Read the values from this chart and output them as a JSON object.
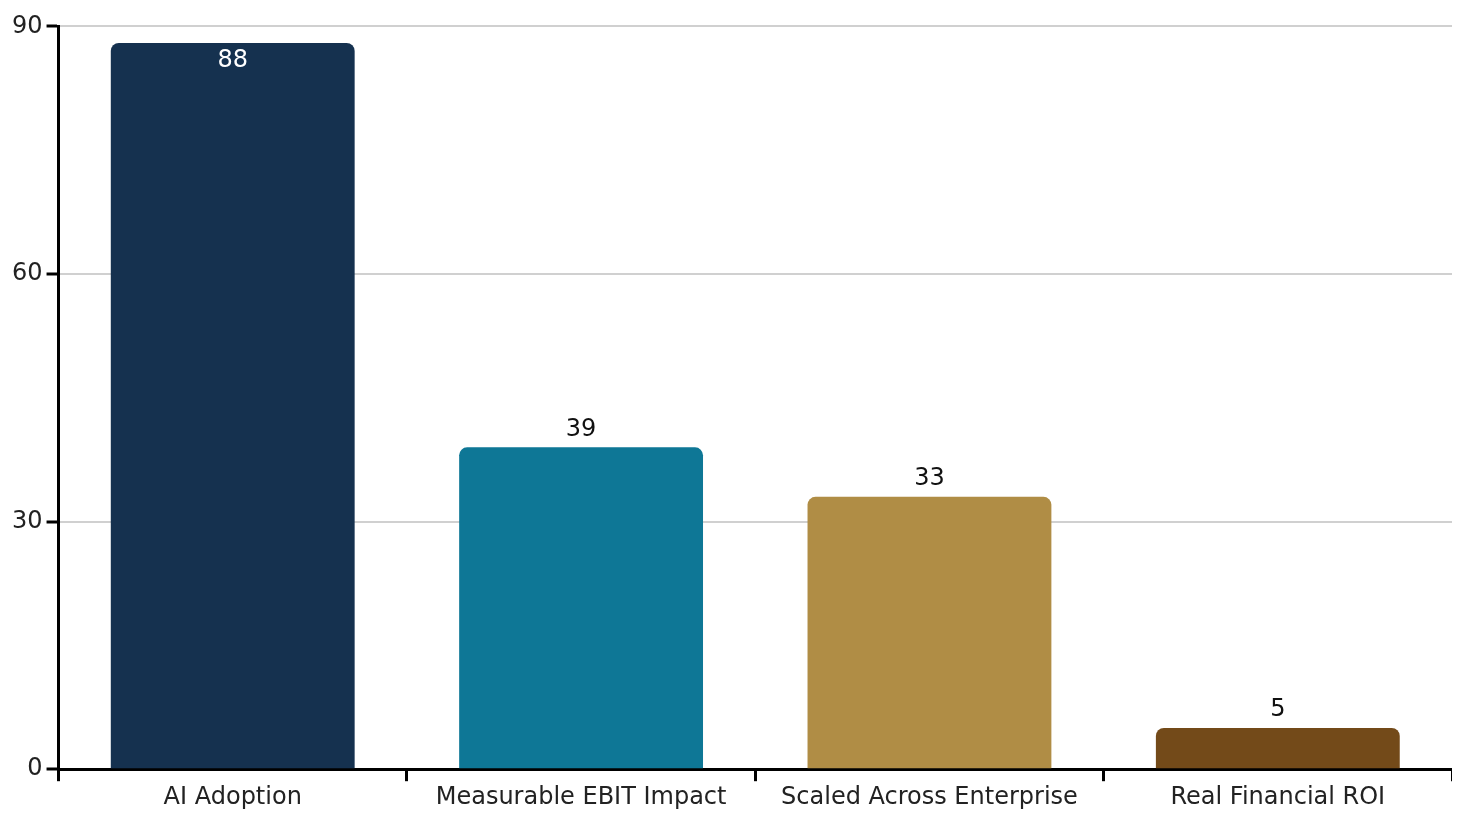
{
  "chart_data": {
    "type": "bar",
    "categories": [
      "AI Adoption",
      "Measurable EBIT Impact",
      "Scaled Across Enterprise",
      "Real Financial ROI"
    ],
    "values": [
      88,
      39,
      33,
      5
    ],
    "colors": [
      "#15314f",
      "#0e7796",
      "#b08d45",
      "#734a19"
    ],
    "ylim": [
      0,
      90
    ],
    "yticks": [
      0,
      30,
      60,
      90
    ],
    "grid": "y",
    "data_labels": true,
    "legend": false
  }
}
